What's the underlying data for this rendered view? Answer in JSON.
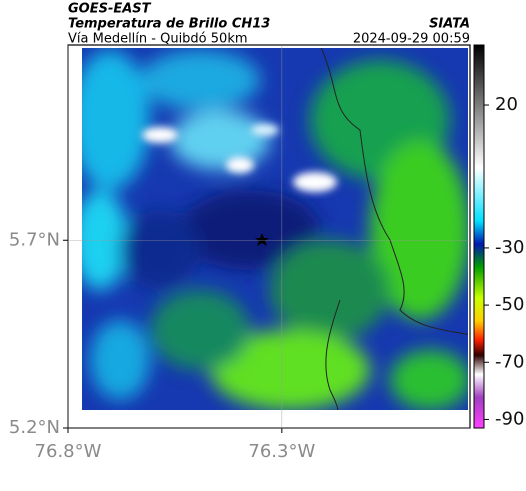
{
  "header": {
    "satellite": "GOES-EAST",
    "title": "Temperatura de Brillo CH13",
    "subtitle": "Vía Medellín - Quibdó 50km",
    "source": "SIATA",
    "datetime": "2024-09-29 00:59"
  },
  "map": {
    "xlim": [
      -76.8,
      -75.86
    ],
    "ylim": [
      5.2,
      6.22
    ],
    "xticks": [
      {
        "value": -76.8,
        "label": "76.8°W"
      },
      {
        "value": -76.3,
        "label": "76.3°W"
      }
    ],
    "yticks": [
      {
        "value": 5.2,
        "label": "5.2°N"
      },
      {
        "value": 5.7,
        "label": "5.7°N"
      }
    ]
  },
  "colorbar": {
    "clim": [
      -93,
      41
    ],
    "ticks": [
      20,
      -30,
      -50,
      -70,
      -90
    ]
  }
}
